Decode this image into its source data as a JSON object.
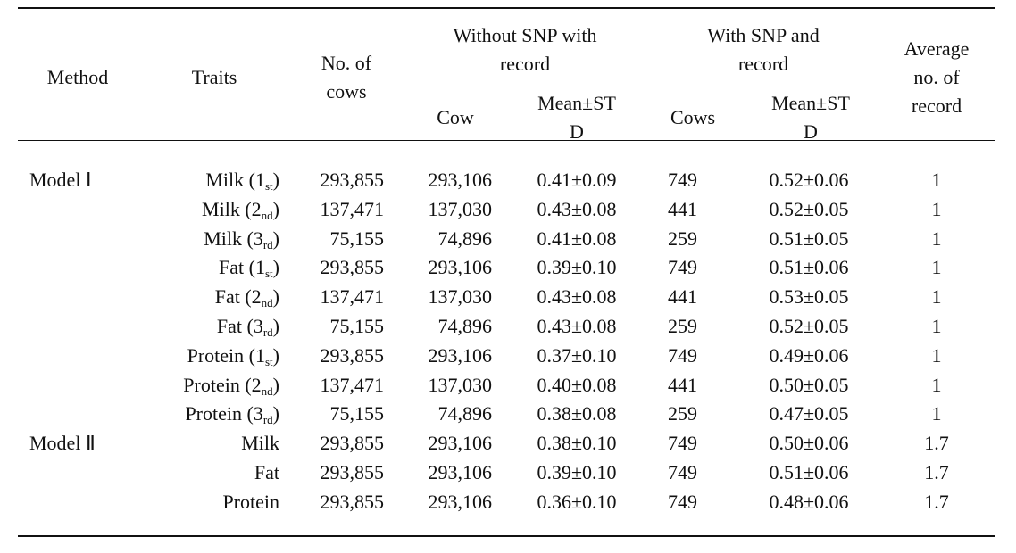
{
  "table": {
    "header": {
      "method": [
        "Method"
      ],
      "traits": [
        "Traits"
      ],
      "no_of_cows": [
        "No. of",
        "cows"
      ],
      "without_group": [
        "Without SNP with",
        "record"
      ],
      "without_cow": [
        "Cow"
      ],
      "without_mean": [
        "Mean±ST",
        "D"
      ],
      "with_group": [
        "With SNP and",
        "record"
      ],
      "with_cows": [
        "Cows"
      ],
      "with_mean": [
        "Mean±ST",
        "D"
      ],
      "average": [
        "Average",
        "no. of",
        "record"
      ]
    },
    "rows": [
      {
        "method": "Model Ⅰ",
        "trait": [
          "Milk (1",
          "st",
          ")"
        ],
        "no_of_cows": "293,855",
        "without_cow": "293,106",
        "without_mean": "0.41±0.09",
        "with_cows": "749",
        "with_mean": "0.52±0.06",
        "average": "1"
      },
      {
        "trait": [
          "Milk (2",
          "nd",
          ")"
        ],
        "no_of_cows": "137,471",
        "without_cow": "137,030",
        "without_mean": "0.43±0.08",
        "with_cows": "441",
        "with_mean": "0.52±0.05",
        "average": "1"
      },
      {
        "trait": [
          "Milk (3",
          "rd",
          ")"
        ],
        "no_of_cows": "75,155",
        "without_cow": "74,896",
        "without_mean": "0.41±0.08",
        "with_cows": "259",
        "with_mean": "0.51±0.05",
        "average": "1"
      },
      {
        "trait": [
          "Fat (1",
          "st",
          ")"
        ],
        "no_of_cows": "293,855",
        "without_cow": "293,106",
        "without_mean": "0.39±0.10",
        "with_cows": "749",
        "with_mean": "0.51±0.06",
        "average": "1"
      },
      {
        "trait": [
          "Fat (2",
          "nd",
          ")"
        ],
        "no_of_cows": "137,471",
        "without_cow": "137,030",
        "without_mean": "0.43±0.08",
        "with_cows": "441",
        "with_mean": "0.53±0.05",
        "average": "1"
      },
      {
        "trait": [
          "Fat (3",
          "rd",
          ")"
        ],
        "no_of_cows": "75,155",
        "without_cow": "74,896",
        "without_mean": "0.43±0.08",
        "with_cows": "259",
        "with_mean": "0.52±0.05",
        "average": "1"
      },
      {
        "trait": [
          "Protein (1",
          "st",
          ")"
        ],
        "no_of_cows": "293,855",
        "without_cow": "293,106",
        "without_mean": "0.37±0.10",
        "with_cows": "749",
        "with_mean": "0.49±0.06",
        "average": "1"
      },
      {
        "trait": [
          "Protein (2",
          "nd",
          ")"
        ],
        "no_of_cows": "137,471",
        "without_cow": "137,030",
        "without_mean": "0.40±0.08",
        "with_cows": "441",
        "with_mean": "0.50±0.05",
        "average": "1"
      },
      {
        "trait": [
          "Protein (3",
          "rd",
          ")"
        ],
        "no_of_cows": "75,155",
        "without_cow": "74,896",
        "without_mean": "0.38±0.08",
        "with_cows": "259",
        "with_mean": "0.47±0.05",
        "average": "1"
      },
      {
        "method": "Model Ⅱ",
        "trait": [
          "Milk"
        ],
        "no_of_cows": "293,855",
        "without_cow": "293,106",
        "without_mean": "0.38±0.10",
        "with_cows": "749",
        "with_mean": "0.50±0.06",
        "average": "1.7"
      },
      {
        "trait": [
          "Fat"
        ],
        "no_of_cows": "293,855",
        "without_cow": "293,106",
        "without_mean": "0.39±0.10",
        "with_cows": "749",
        "with_mean": "0.51±0.06",
        "average": "1.7"
      },
      {
        "trait": [
          "Protein"
        ],
        "no_of_cows": "293,855",
        "without_cow": "293,106",
        "without_mean": "0.36±0.10",
        "with_cows": "749",
        "with_mean": "0.48±0.06",
        "average": "1.7"
      }
    ]
  }
}
